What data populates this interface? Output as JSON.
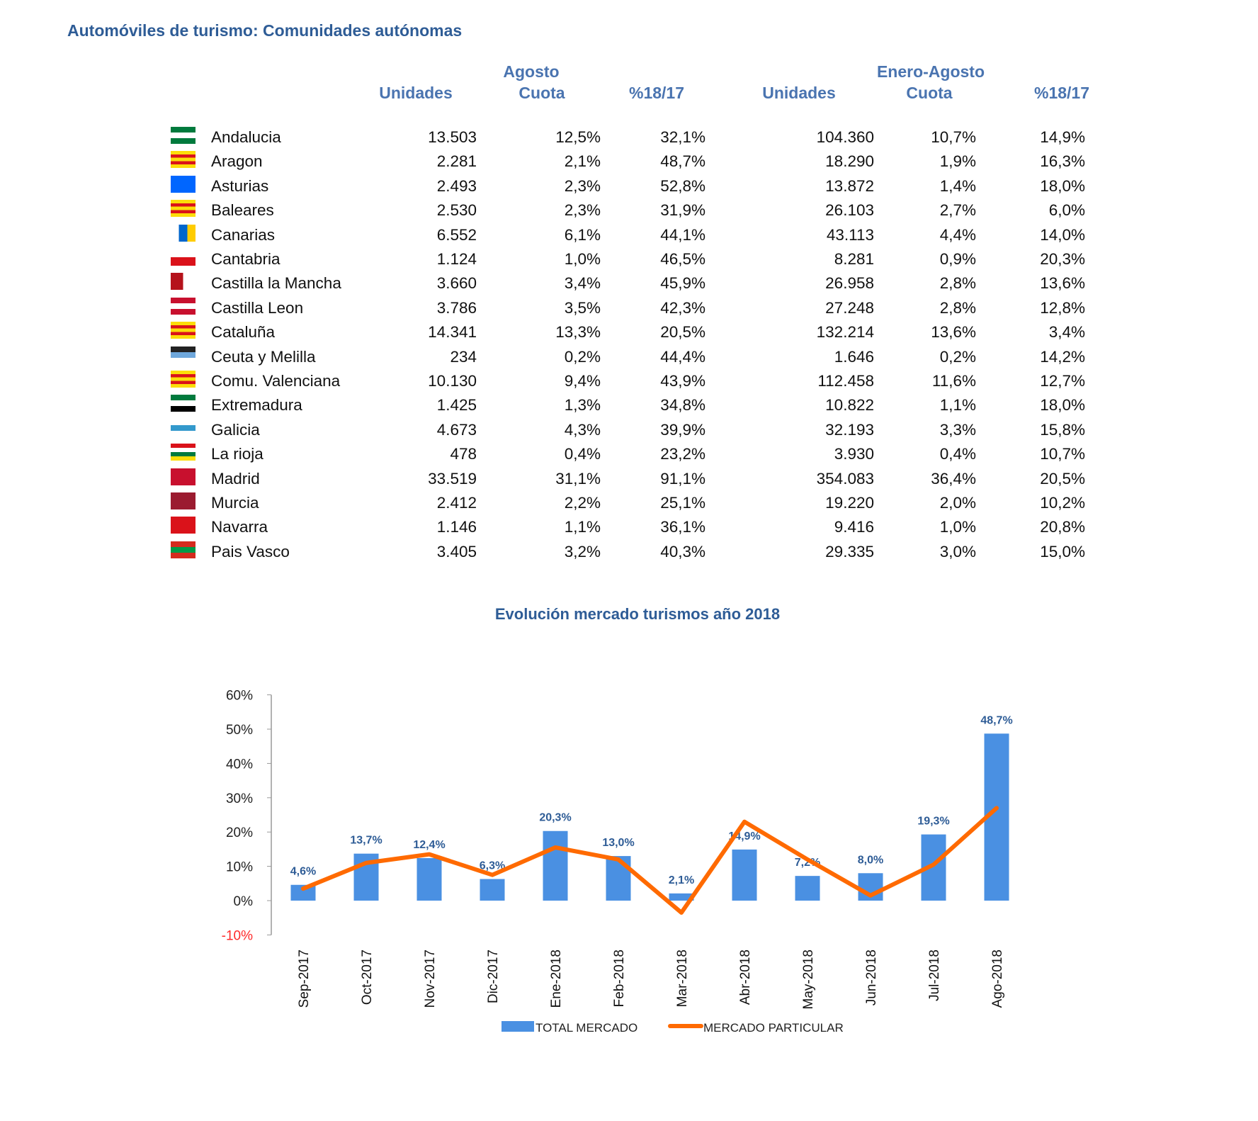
{
  "title": "Automóviles de turismo: Comunidades autónomas",
  "headers": {
    "agosto": "Agosto",
    "enero_agosto": "Enero-Agosto",
    "unidades": "Unidades",
    "cuota": "Cuota",
    "var": "%18/17"
  },
  "rows": [
    {
      "name": "Andalucia",
      "flag": [
        "#007a3d",
        "#ffffff",
        "#007a3d"
      ],
      "a_u": "13.503",
      "a_c": "12,5%",
      "a_v": "32,1%",
      "e_u": "104.360",
      "e_c": "10,7%",
      "e_v": "14,9%"
    },
    {
      "name": "Aragon",
      "flag": [
        "#fcdd09",
        "#da121a",
        "#fcdd09",
        "#da121a",
        "#fcdd09"
      ],
      "a_u": "2.281",
      "a_c": "2,1%",
      "a_v": "48,7%",
      "e_u": "18.290",
      "e_c": "1,9%",
      "e_v": "16,3%"
    },
    {
      "name": "Asturias",
      "flag": [
        "#0066ff"
      ],
      "a_u": "2.493",
      "a_c": "2,3%",
      "a_v": "52,8%",
      "e_u": "13.872",
      "e_c": "1,4%",
      "e_v": "18,0%"
    },
    {
      "name": "Baleares",
      "flag": [
        "#fcdd09",
        "#da121a",
        "#fcdd09",
        "#da121a",
        "#fcdd09"
      ],
      "a_u": "2.530",
      "a_c": "2,3%",
      "a_v": "31,9%",
      "e_u": "26.103",
      "e_c": "2,7%",
      "e_v": "6,0%"
    },
    {
      "name": "Canarias",
      "flag": [
        "#ffffff",
        "#0066cc",
        "#ffcc00"
      ],
      "a_u": "6.552",
      "a_c": "6,1%",
      "a_v": "44,1%",
      "e_u": "43.113",
      "e_c": "4,4%",
      "e_v": "14,0%"
    },
    {
      "name": "Cantabria",
      "flag": [
        "#ffffff",
        "#da121a"
      ],
      "a_u": "1.124",
      "a_c": "1,0%",
      "a_v": "46,5%",
      "e_u": "8.281",
      "e_c": "0,9%",
      "e_v": "20,3%"
    },
    {
      "name": "Castilla la Mancha",
      "flag": [
        "#b5121b",
        "#ffffff"
      ],
      "a_u": "3.660",
      "a_c": "3,4%",
      "a_v": "45,9%",
      "e_u": "26.958",
      "e_c": "2,8%",
      "e_v": "13,6%"
    },
    {
      "name": "Castilla Leon",
      "flag": [
        "#c8102e",
        "#ffffff",
        "#c8102e"
      ],
      "a_u": "3.786",
      "a_c": "3,5%",
      "a_v": "42,3%",
      "e_u": "27.248",
      "e_c": "2,8%",
      "e_v": "12,8%"
    },
    {
      "name": "Cataluña",
      "flag": [
        "#fcdd09",
        "#da121a",
        "#fcdd09",
        "#da121a",
        "#fcdd09"
      ],
      "a_u": "14.341",
      "a_c": "13,3%",
      "a_v": "20,5%",
      "e_u": "132.214",
      "e_c": "13,6%",
      "e_v": "3,4%"
    },
    {
      "name": "Ceuta y Melilla",
      "flag": [
        "#222222",
        "#6fa8dc",
        "#ffffff"
      ],
      "a_u": "234",
      "a_c": "0,2%",
      "a_v": "44,4%",
      "e_u": "1.646",
      "e_c": "0,2%",
      "e_v": "14,2%"
    },
    {
      "name": "Comu. Valenciana",
      "flag": [
        "#fcdd09",
        "#da121a",
        "#fcdd09",
        "#da121a",
        "#fcdd09"
      ],
      "a_u": "10.130",
      "a_c": "9,4%",
      "a_v": "43,9%",
      "e_u": "112.458",
      "e_c": "11,6%",
      "e_v": "12,7%"
    },
    {
      "name": "Extremadura",
      "flag": [
        "#007a3d",
        "#ffffff",
        "#000000"
      ],
      "a_u": "1.425",
      "a_c": "1,3%",
      "a_v": "34,8%",
      "e_u": "10.822",
      "e_c": "1,1%",
      "e_v": "18,0%"
    },
    {
      "name": "Galicia",
      "flag": [
        "#ffffff",
        "#3399cc",
        "#ffffff"
      ],
      "a_u": "4.673",
      "a_c": "4,3%",
      "a_v": "39,9%",
      "e_u": "32.193",
      "e_c": "3,3%",
      "e_v": "15,8%"
    },
    {
      "name": "La rioja",
      "flag": [
        "#da121a",
        "#ffffff",
        "#007a3d",
        "#fcdd09"
      ],
      "a_u": "478",
      "a_c": "0,4%",
      "a_v": "23,2%",
      "e_u": "3.930",
      "e_c": "0,4%",
      "e_v": "10,7%"
    },
    {
      "name": "Madrid",
      "flag": [
        "#c8102e"
      ],
      "a_u": "33.519",
      "a_c": "31,1%",
      "a_v": "91,1%",
      "e_u": "354.083",
      "e_c": "36,4%",
      "e_v": "20,5%"
    },
    {
      "name": "Murcia",
      "flag": [
        "#9b1b30"
      ],
      "a_u": "2.412",
      "a_c": "2,2%",
      "a_v": "25,1%",
      "e_u": "19.220",
      "e_c": "2,0%",
      "e_v": "10,2%"
    },
    {
      "name": "Navarra",
      "flag": [
        "#da121a"
      ],
      "a_u": "1.146",
      "a_c": "1,1%",
      "a_v": "36,1%",
      "e_u": "9.416",
      "e_c": "1,0%",
      "e_v": "20,8%"
    },
    {
      "name": "Pais Vasco",
      "flag": [
        "#d52b1e",
        "#009b48",
        "#d52b1e"
      ],
      "a_u": "3.405",
      "a_c": "3,2%",
      "a_v": "40,3%",
      "e_u": "29.335",
      "e_c": "3,0%",
      "e_v": "15,0%"
    }
  ],
  "chart_title": "Evolución mercado turismos año 2018",
  "chart_data": {
    "type": "bar",
    "title": "Evolución mercado turismos año 2018",
    "categories": [
      "Sep-2017",
      "Oct-2017",
      "Nov-2017",
      "Dic-2017",
      "Ene-2018",
      "Feb-2018",
      "Mar-2018",
      "Abr-2018",
      "May-2018",
      "Jun-2018",
      "Jul-2018",
      "Ago-2018"
    ],
    "series": [
      {
        "name": "TOTAL MERCADO",
        "type": "bar",
        "color": "#4a90e2",
        "values": [
          4.6,
          13.7,
          12.4,
          6.3,
          20.3,
          13.0,
          2.1,
          14.9,
          7.2,
          8.0,
          19.3,
          48.7
        ],
        "labels": [
          "4,6%",
          "13,7%",
          "12,4%",
          "6,3%",
          "20,3%",
          "13,0%",
          "2,1%",
          "14,9%",
          "7,2%",
          "8,0%",
          "19,3%",
          "48,7%"
        ]
      },
      {
        "name": "MERCADO PARTICULAR",
        "type": "line",
        "color": "#ff6a00",
        "values": [
          3.5,
          11,
          13.5,
          7.5,
          15.5,
          12,
          -3.5,
          23,
          12,
          1.5,
          10.5,
          27
        ]
      }
    ],
    "ylim": [
      -10,
      60
    ],
    "yticks": [
      "-10%",
      "0%",
      "10%",
      "20%",
      "30%",
      "40%",
      "50%",
      "60%"
    ],
    "ytick_values": [
      -10,
      0,
      10,
      20,
      30,
      40,
      50,
      60
    ],
    "negative_tick_color": "#ff2a2a",
    "legend": "bottom"
  }
}
